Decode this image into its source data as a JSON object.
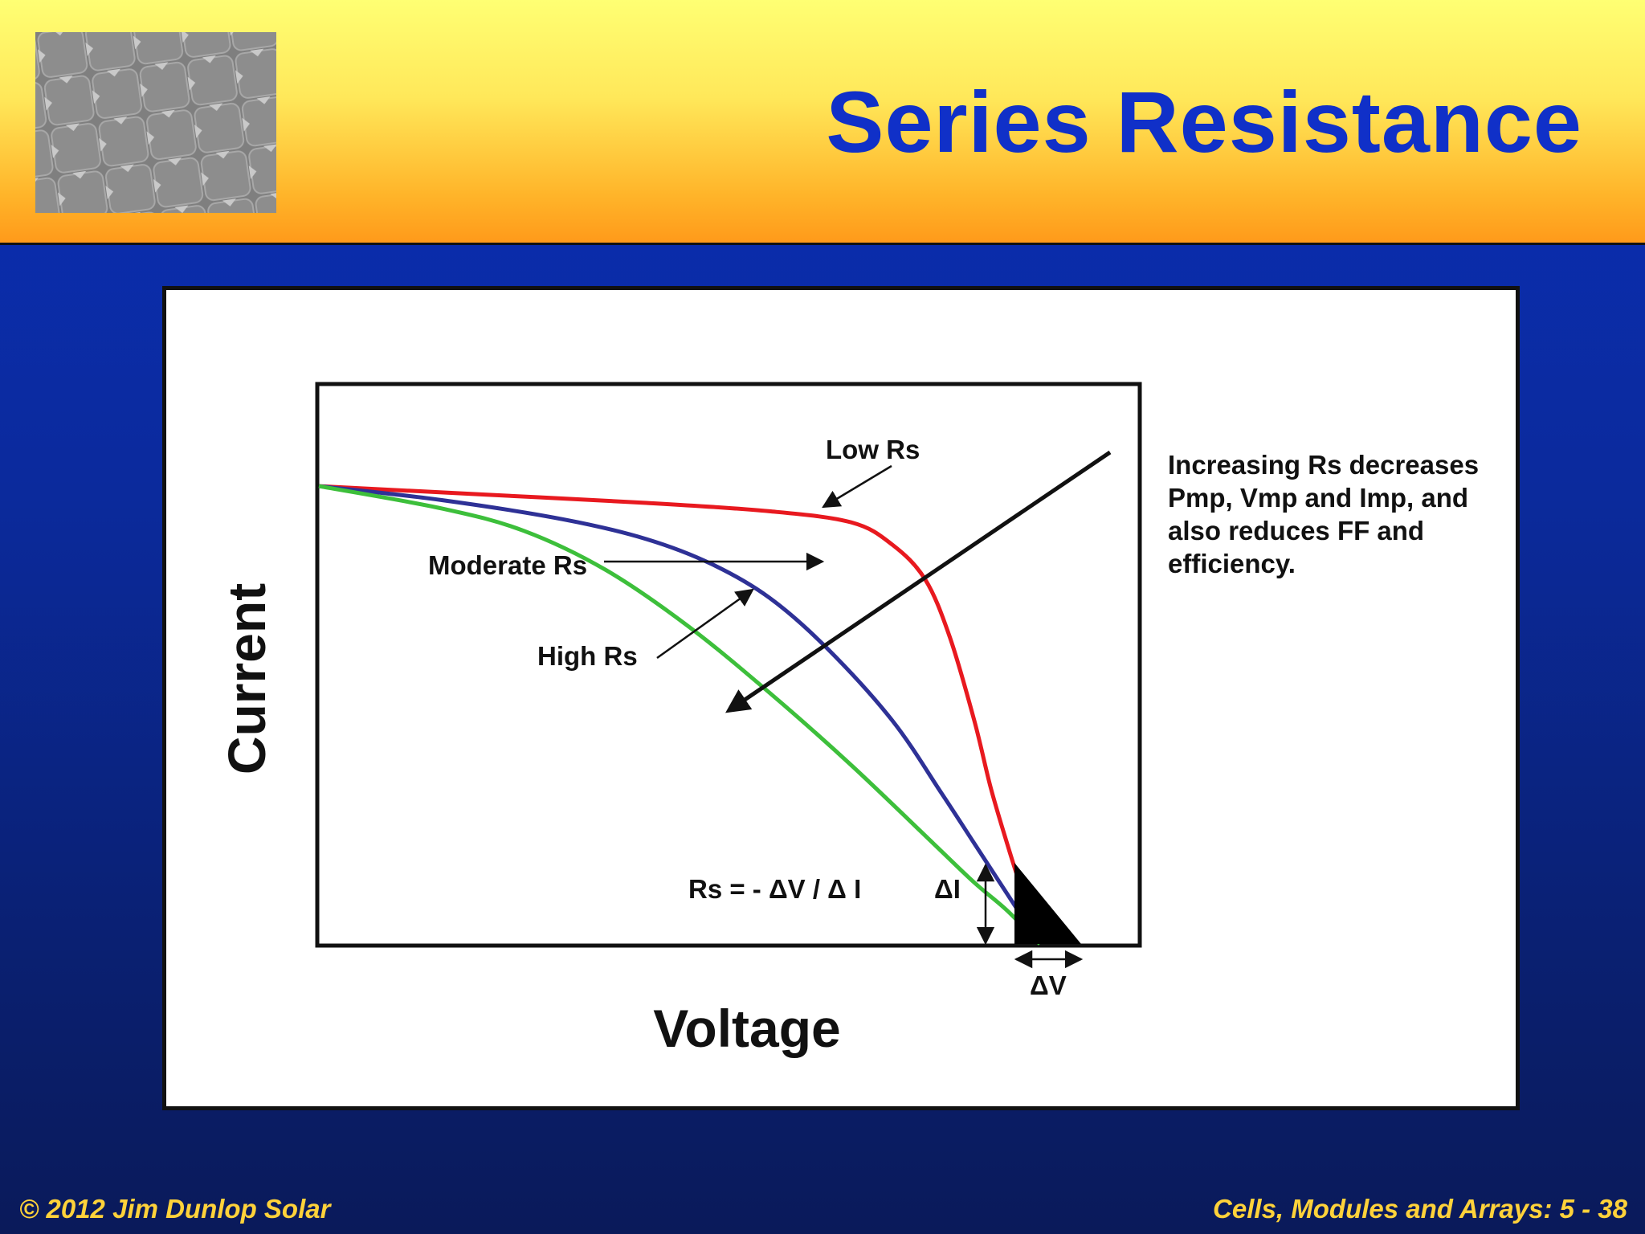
{
  "slide": {
    "title": "Series Resistance",
    "note": "Increasing Rs decreases Pmp, Vmp and Imp, and also reduces FF and efficiency.",
    "footer_left": "© 2012 Jim Dunlop Solar",
    "footer_right": "Cells, Modules and Arrays: 5 - 38",
    "colors": {
      "title": "#1030c8",
      "footer": "#ffd23a",
      "header_top": "#ffff73",
      "header_bottom": "#ff9a1a",
      "background": "#0a2fb8"
    },
    "thumbnail_icon": "solar-cell-image"
  },
  "chart_data": {
    "type": "line",
    "title": "",
    "xlabel": "Voltage",
    "ylabel": "Current",
    "xlim": [
      0,
      100
    ],
    "ylim": [
      0,
      100
    ],
    "grid": false,
    "ticks": false,
    "series": [
      {
        "name": "Low Rs",
        "color": "#e8191f",
        "x": [
          0,
          20,
          40,
          55,
          65,
          70,
          74,
          77,
          80,
          82,
          84,
          85.5,
          88
        ],
        "y": [
          82,
          80.5,
          79,
          77.5,
          75.5,
          71.5,
          65.3,
          55,
          40,
          28,
          18,
          11,
          0
        ]
      },
      {
        "name": "Moderate Rs",
        "color": "#2e3196",
        "x": [
          0,
          15,
          30,
          40,
          48,
          55,
          62,
          70,
          76,
          80,
          84,
          88
        ],
        "y": [
          82,
          79.5,
          76,
          72.5,
          68,
          62,
          53,
          40,
          27,
          18,
          9,
          0
        ]
      },
      {
        "name": "High Rs",
        "color": "#3dbf3b",
        "x": [
          0,
          15,
          25,
          35,
          45,
          55,
          65,
          75,
          80,
          84,
          88
        ],
        "y": [
          82,
          78,
          74,
          67,
          57,
          45,
          32,
          18,
          11,
          6,
          0
        ]
      }
    ],
    "annotations": [
      {
        "text": "Low Rs"
      },
      {
        "text": "Moderate Rs"
      },
      {
        "text": "High Rs"
      },
      {
        "text": "Rs = - ΔV / Δ I"
      },
      {
        "text": "ΔI"
      },
      {
        "text": "ΔV"
      }
    ]
  }
}
